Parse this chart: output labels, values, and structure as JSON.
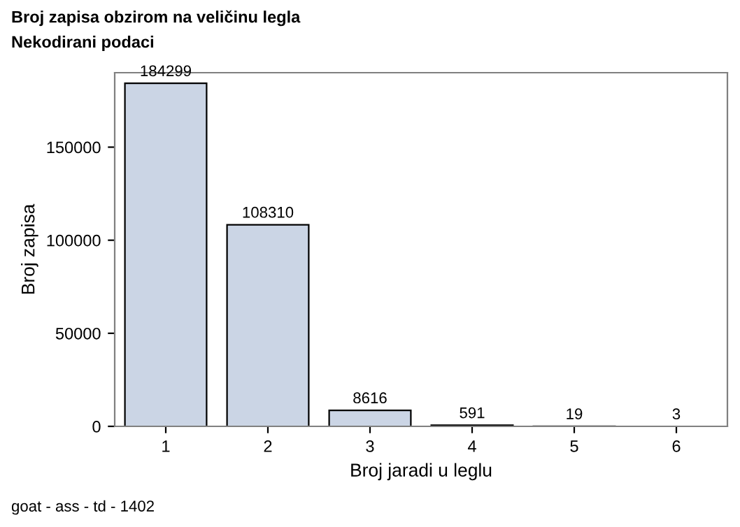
{
  "chart_data": {
    "type": "bar",
    "title": "Broj zapisa obzirom na veličinu legla",
    "subtitle": "Nekodirani podaci",
    "xlabel": "Broj jaradi u leglu",
    "ylabel": "Broj zapisa",
    "categories": [
      "1",
      "2",
      "3",
      "4",
      "5",
      "6"
    ],
    "values": [
      184299,
      108310,
      8616,
      591,
      19,
      3
    ],
    "color": "#cbd5e5",
    "ylim": [
      0,
      190000
    ],
    "yticks": [
      0,
      50000,
      100000,
      150000
    ],
    "data_labels": true,
    "grid": false,
    "annotations": [
      "goat - ass - td - 1402"
    ]
  }
}
